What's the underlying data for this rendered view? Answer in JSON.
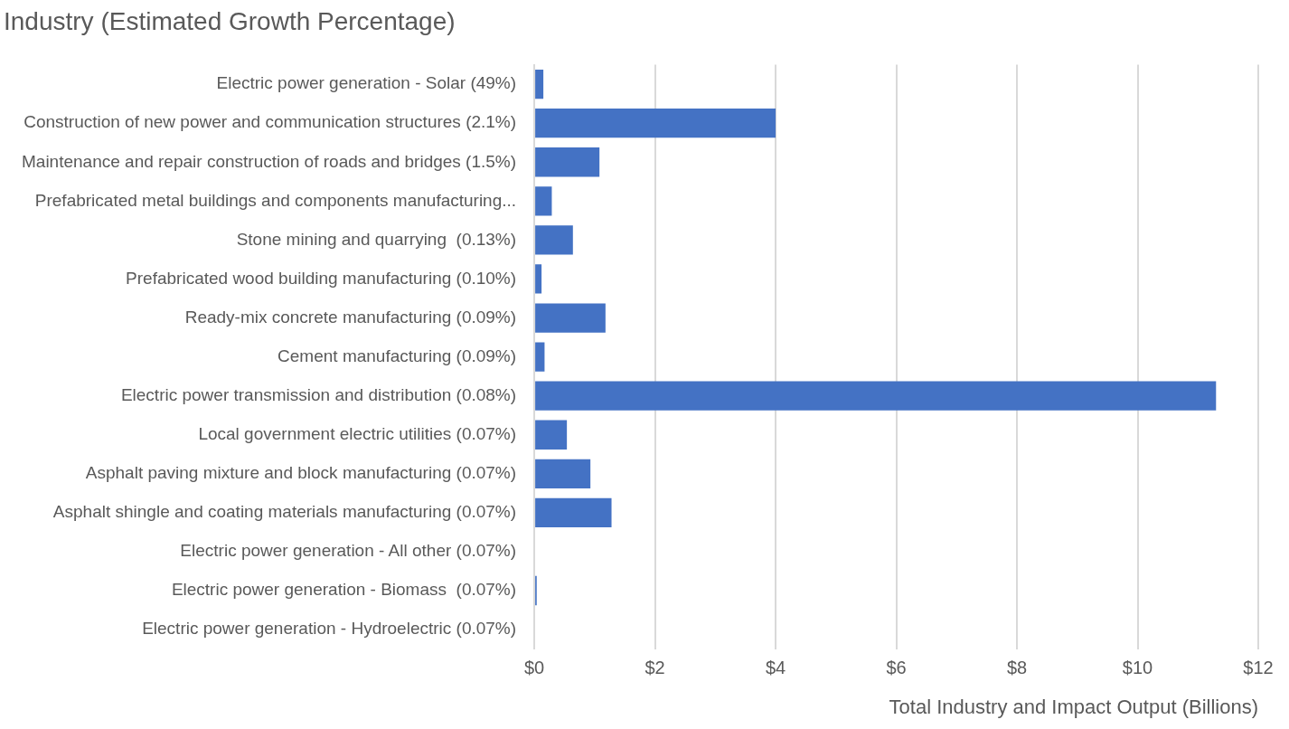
{
  "chart_data": {
    "type": "bar",
    "orientation": "horizontal",
    "title": "Industry (Estimated Growth Percentage)",
    "xlabel": "Total Industry and Impact Output (Billions)",
    "categories": [
      "Electric power generation - Solar (49%)",
      "Construction of new power and communication structures (2.1%)",
      "Maintenance and repair construction of roads and bridges (1.5%)",
      "Prefabricated metal buildings and components manufacturing...",
      "Stone mining and quarrying  (0.13%)",
      "Prefabricated wood building manufacturing (0.10%)",
      "Ready-mix concrete manufacturing (0.09%)",
      "Cement manufacturing (0.09%)",
      "Electric power transmission and distribution (0.08%)",
      "Local government electric utilities (0.07%)",
      "Asphalt paving mixture and block manufacturing (0.07%)",
      "Asphalt shingle and coating materials manufacturing (0.07%)",
      "Electric power generation - All other (0.07%)",
      "Electric power generation - Biomass  (0.07%)",
      "Electric power generation - Hydroelectric (0.07%)"
    ],
    "values": [
      0.15,
      4.0,
      1.08,
      0.29,
      0.64,
      0.12,
      1.18,
      0.17,
      11.3,
      0.54,
      0.93,
      1.28,
      0,
      0.04,
      0
    ],
    "color": "#4472c4",
    "xlim": [
      0,
      12
    ],
    "xticks": [
      {
        "value": 0,
        "label": "$0"
      },
      {
        "value": 2,
        "label": "$2"
      },
      {
        "value": 4,
        "label": "$4"
      },
      {
        "value": 6,
        "label": "$6"
      },
      {
        "value": 8,
        "label": "$8"
      },
      {
        "value": 10,
        "label": "$10"
      },
      {
        "value": 12,
        "label": "$12"
      }
    ],
    "grid": "x",
    "legend": false
  }
}
